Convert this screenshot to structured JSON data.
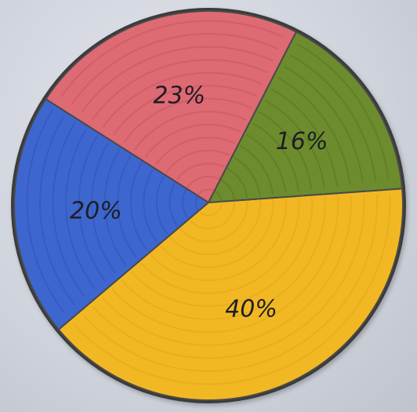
{
  "chart_data": {
    "type": "pie",
    "title": "",
    "start_angle_deg": -5,
    "slices": [
      {
        "label": "40%",
        "value": 40,
        "color": "#f2b824",
        "ring_color": "#e0a516"
      },
      {
        "label": "20%",
        "value": 20,
        "color": "#3e66cf",
        "ring_color": "#2f54b8"
      },
      {
        "label": "23%",
        "value": 23,
        "color": "#de6a74",
        "ring_color": "#c9545f"
      },
      {
        "label": "16%",
        "value": 16,
        "color": "#6d8c2e",
        "ring_color": "#587522"
      }
    ],
    "legend": "none",
    "data_labels": "inside"
  }
}
